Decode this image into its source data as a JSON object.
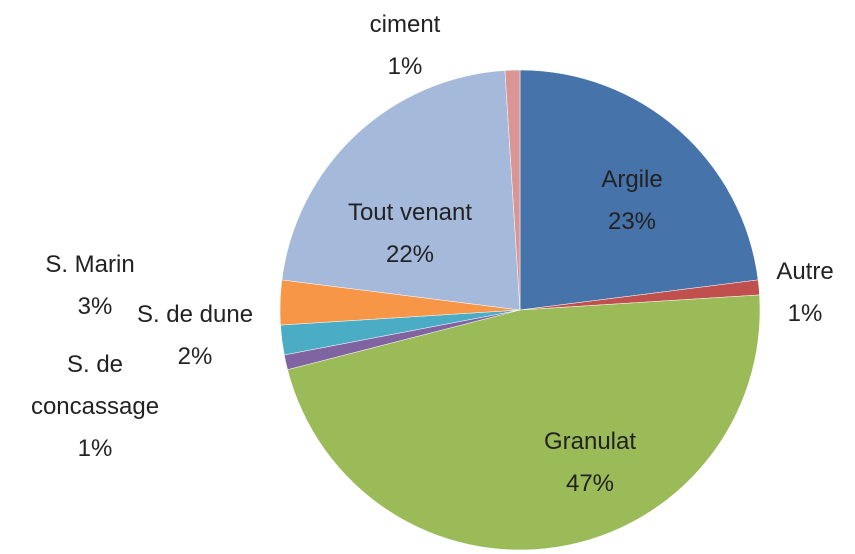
{
  "chart_data": {
    "type": "pie",
    "categories": [
      "Argile",
      "Autre",
      "Granulat",
      "S. de concassage",
      "S. de dune",
      "S. Marin",
      "Tout venant",
      "ciment"
    ],
    "values": [
      23,
      1,
      47,
      1,
      2,
      3,
      22,
      1
    ],
    "value_labels": [
      "23%",
      "1%",
      "47%",
      "1%",
      "2%",
      "3%",
      "22%",
      "1%"
    ],
    "colors": [
      "#4673a9",
      "#c0504d",
      "#9bbb59",
      "#8064a2",
      "#4bacc6",
      "#f79646",
      "#a5b9db",
      "#d99694"
    ]
  }
}
